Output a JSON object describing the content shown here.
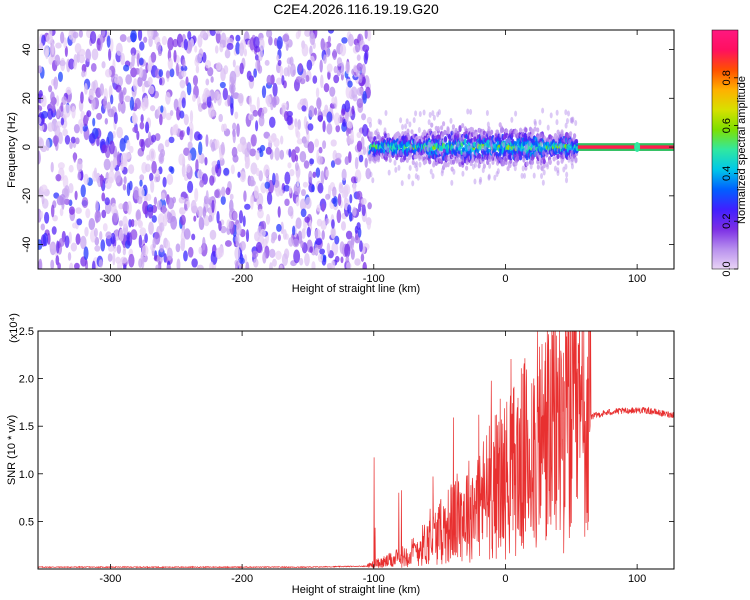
{
  "figure": {
    "title": "C2E4.2026.116.19.19.G20"
  },
  "chart_data": [
    {
      "type": "heatmap",
      "name": "spectrogram",
      "xlabel": "Height of straight line (km)",
      "ylabel": "Frequency (Hz)",
      "xlim": [
        -355,
        128
      ],
      "ylim": [
        -50,
        48
      ],
      "xticks": [
        -300,
        -200,
        -100,
        0,
        100
      ],
      "yticks": [
        -40,
        -20,
        0,
        20,
        40
      ],
      "colorbar": {
        "label": "Normalized spectral amplitude",
        "range": [
          0,
          1
        ],
        "ticks": [
          "0.0",
          "0.2",
          "0.4",
          "0.6",
          "0.8"
        ],
        "ramp_colors": [
          "#e9d4f5",
          "#b890ee",
          "#7c2ee5",
          "#4020ff",
          "#0060ff",
          "#00c8e8",
          "#30e8a0",
          "#7ee000",
          "#d8e000",
          "#ffb000",
          "#ff5000",
          "#ff1060",
          "#ff1880"
        ]
      },
      "regions": [
        {
          "x_from": -355,
          "x_to": -103,
          "description_level": 0.15,
          "pattern": "noise"
        },
        {
          "x_from": -103,
          "x_to": 55,
          "level": 0.5,
          "pattern": "band",
          "center_hz": 0
        },
        {
          "x_from": 55,
          "x_to": 128,
          "level": 0.9,
          "pattern": "tone",
          "center_hz": 0
        }
      ]
    },
    {
      "type": "line",
      "name": "snr",
      "xlabel": "Height of straight line (km)",
      "ylabel": "SNR (10 * v/v)",
      "y_multiplier": "(x10⁴)",
      "xlim": [
        -355,
        128
      ],
      "ylim": [
        0,
        2.5
      ],
      "xticks": [
        -300,
        -200,
        -100,
        0,
        100
      ],
      "yticks": [
        "0.5",
        "1.0",
        "1.5",
        "2.0",
        "2.5"
      ],
      "color": "#e83030",
      "series": [
        {
          "x": [
            -355,
            -250,
            -150,
            -105,
            -100,
            -90,
            -80,
            -70,
            -60,
            -50,
            -40,
            -30,
            -20,
            -10,
            0,
            10,
            20,
            30,
            40,
            50,
            60,
            65,
            70,
            80,
            90,
            100,
            110,
            120,
            128
          ],
          "y": [
            0.02,
            0.02,
            0.02,
            0.03,
            0.05,
            0.08,
            0.12,
            0.18,
            0.28,
            0.38,
            0.5,
            0.6,
            0.7,
            0.85,
            0.95,
            1.1,
            1.25,
            1.4,
            1.5,
            1.55,
            1.55,
            1.6,
            1.62,
            1.65,
            1.66,
            1.67,
            1.66,
            1.63,
            1.62
          ]
        }
      ]
    }
  ]
}
